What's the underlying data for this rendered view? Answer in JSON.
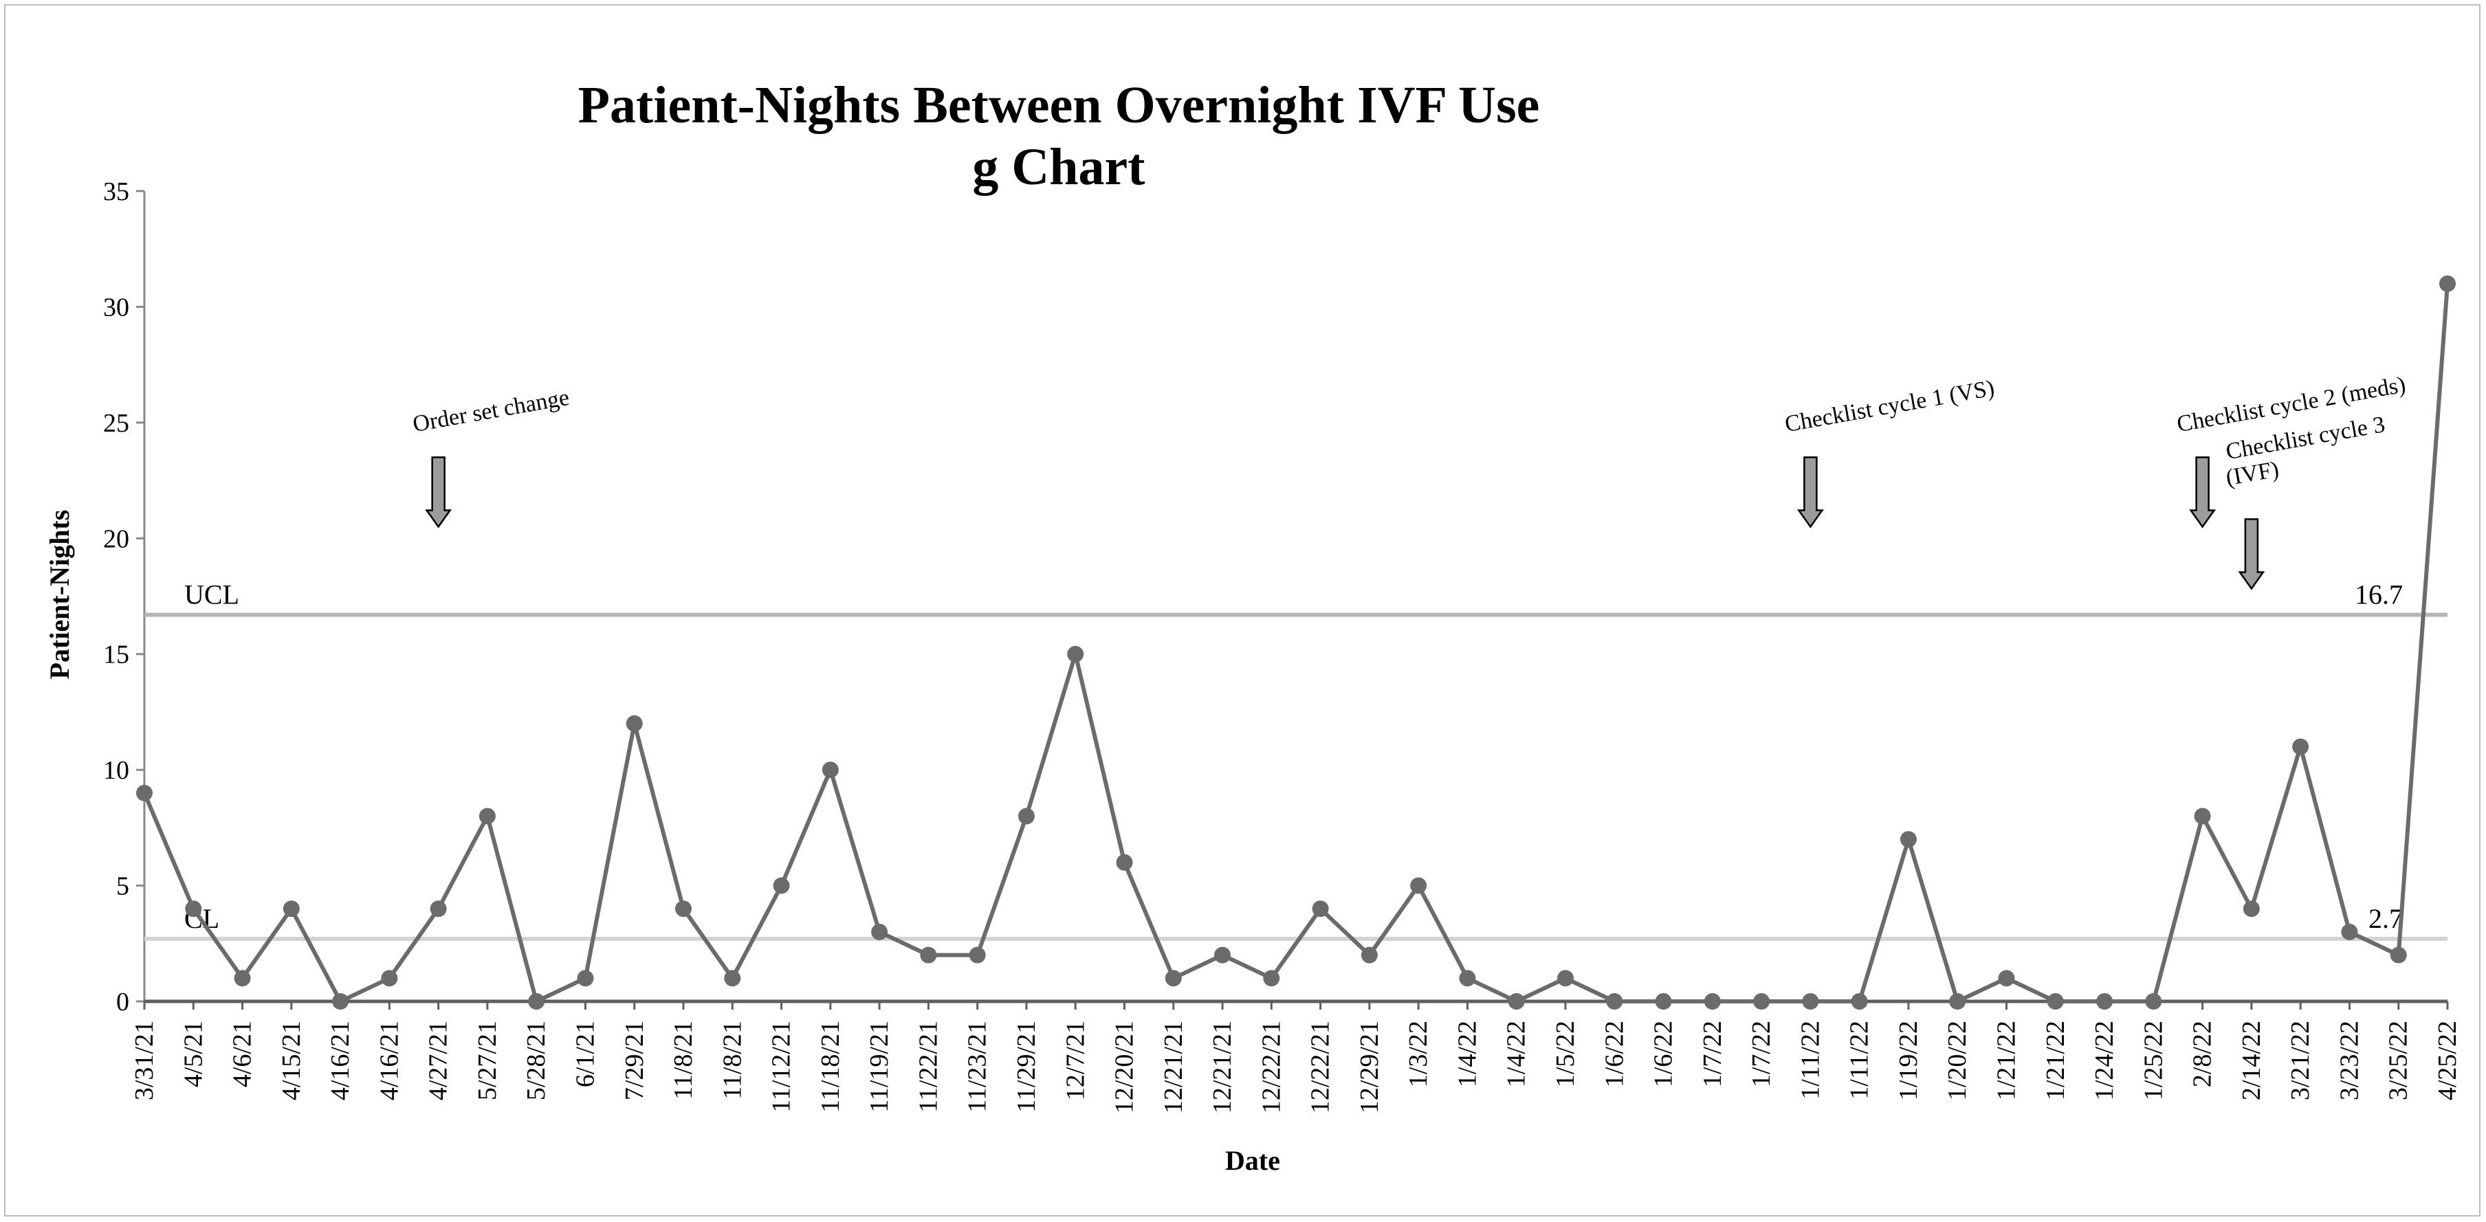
{
  "chart_data": {
    "type": "line",
    "title_line1": "Patient-Nights Between Overnight IVF Use",
    "title_line2": "g Chart",
    "xlabel": "Date",
    "ylabel": "Patient-Nights",
    "ylim": [
      0,
      35
    ],
    "yticks": [
      0,
      5,
      10,
      15,
      20,
      25,
      30,
      35
    ],
    "categories": [
      "3/31/21",
      "4/5/21",
      "4/6/21",
      "4/15/21",
      "4/16/21",
      "4/16/21",
      "4/27/21",
      "5/27/21",
      "5/28/21",
      "6/1/21",
      "7/29/21",
      "11/8/21",
      "11/8/21",
      "11/12/21",
      "11/18/21",
      "11/19/21",
      "11/22/21",
      "11/23/21",
      "11/29/21",
      "12/7/21",
      "12/20/21",
      "12/21/21",
      "12/21/21",
      "12/22/21",
      "12/22/21",
      "12/29/21",
      "1/3/22",
      "1/4/22",
      "1/4/22",
      "1/5/22",
      "1/6/22",
      "1/6/22",
      "1/7/22",
      "1/7/22",
      "1/11/22",
      "1/11/22",
      "1/19/22",
      "1/20/22",
      "1/21/22",
      "1/21/22",
      "1/24/22",
      "1/25/22",
      "2/8/22",
      "2/14/22",
      "3/21/22",
      "3/23/22",
      "3/25/22",
      "4/25/22"
    ],
    "series": [
      {
        "name": "",
        "color": "#6b6b6b",
        "values": [
          9,
          4,
          1,
          4,
          0,
          1,
          4,
          8,
          0,
          1,
          12,
          4,
          1,
          5,
          10,
          3,
          2,
          2,
          8,
          15,
          6,
          1,
          2,
          1,
          4,
          2,
          5,
          1,
          0,
          1,
          0,
          0,
          0,
          0,
          0,
          0,
          7,
          0,
          1,
          0,
          0,
          0,
          8,
          4,
          11,
          3,
          2,
          31
        ]
      }
    ],
    "control_lines": [
      {
        "label": "UCL",
        "value": 16.7,
        "value_label": "16.7",
        "color": "#b4b4b4"
      },
      {
        "label": "CL",
        "value": 2.7,
        "value_label": "2.7",
        "color": "#d3d3d3"
      }
    ],
    "annotations": [
      {
        "lines": [
          "Order set change"
        ],
        "category_index": 6
      },
      {
        "lines": [
          "Checklist cycle 1 (VS)"
        ],
        "category_index": 34
      },
      {
        "lines": [
          "Checklist cycle 2 (meds)"
        ],
        "category_index": 42
      },
      {
        "lines": [
          "Checklist cycle 3",
          "(IVF)"
        ],
        "category_index": 43
      }
    ],
    "grid": false,
    "legend": "none"
  }
}
